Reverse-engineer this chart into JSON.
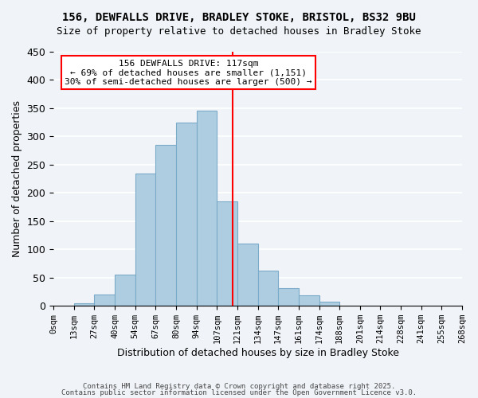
{
  "title1": "156, DEWFALLS DRIVE, BRADLEY STOKE, BRISTOL, BS32 9BU",
  "title2": "Size of property relative to detached houses in Bradley Stoke",
  "xlabel": "Distribution of detached houses by size in Bradley Stoke",
  "ylabel": "Number of detached properties",
  "bin_labels": [
    "0sqm",
    "13sqm",
    "27sqm",
    "40sqm",
    "54sqm",
    "67sqm",
    "80sqm",
    "94sqm",
    "107sqm",
    "121sqm",
    "134sqm",
    "147sqm",
    "161sqm",
    "174sqm",
    "188sqm",
    "201sqm",
    "214sqm",
    "228sqm",
    "241sqm",
    "255sqm",
    "268sqm"
  ],
  "bar_values": [
    0,
    5,
    20,
    55,
    235,
    285,
    325,
    345,
    185,
    110,
    63,
    32,
    18,
    8,
    0,
    0,
    0,
    0,
    0,
    0
  ],
  "bar_color": "#aecde1",
  "bar_edge_color": "#7baac8",
  "vline_x": 8.5,
  "vline_color": "red",
  "annotation_title": "156 DEWFALLS DRIVE: 117sqm",
  "annotation_line1": "← 69% of detached houses are smaller (1,151)",
  "annotation_line2": "30% of semi-detached houses are larger (500) →",
  "annotation_box_color": "#ffffff",
  "annotation_box_edge": "red",
  "ylim": [
    0,
    450
  ],
  "yticks": [
    0,
    50,
    100,
    150,
    200,
    250,
    300,
    350,
    400,
    450
  ],
  "footer1": "Contains HM Land Registry data © Crown copyright and database right 2025.",
  "footer2": "Contains public sector information licensed under the Open Government Licence v3.0.",
  "background_color": "#f0f4f8",
  "grid_color": "#ffffff"
}
